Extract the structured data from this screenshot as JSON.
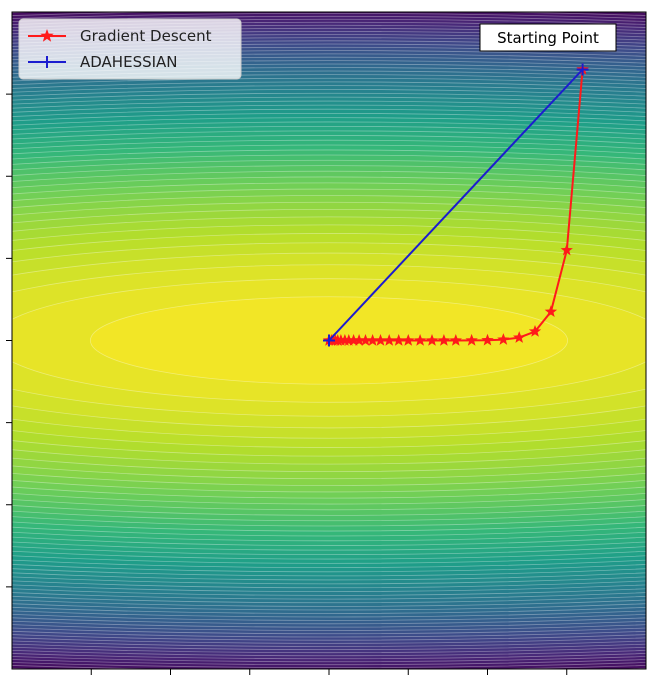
{
  "chart_data": {
    "type": "line",
    "title": "",
    "xlabel": "",
    "ylabel": "",
    "xlim": [
      -4,
      4
    ],
    "ylim": [
      -4,
      4
    ],
    "grid": false,
    "tick_labels_visible": false,
    "background": {
      "kind": "filled_contour",
      "colormap": "viridis",
      "function": "-(x^2/32 + y^2)",
      "levels": 60,
      "center": [
        0,
        0
      ]
    },
    "legend": {
      "placement": "top-left",
      "entries": [
        "Gradient Descent",
        "ADAHESSIAN"
      ]
    },
    "series": [
      {
        "name": "Gradient Descent",
        "color": "#ff1a1a",
        "marker": "star",
        "x": [
          3.2,
          3.0,
          2.8,
          2.6,
          2.4,
          2.2,
          2.0,
          1.8,
          1.6,
          1.45,
          1.3,
          1.15,
          1.0,
          0.88,
          0.76,
          0.65,
          0.55,
          0.46,
          0.38,
          0.31,
          0.25,
          0.2,
          0.15,
          0.11,
          0.08,
          0.05,
          0.03,
          0.0
        ],
        "y": [
          3.3,
          1.1,
          0.35,
          0.11,
          0.035,
          0.011,
          0.003,
          0.001,
          0.0,
          0.0,
          0.0,
          0.0,
          0.0,
          0.0,
          0.0,
          0.0,
          0.0,
          0.0,
          0.0,
          0.0,
          0.0,
          0.0,
          0.0,
          0.0,
          0.0,
          0.0,
          0.0,
          0.0
        ]
      },
      {
        "name": "ADAHESSIAN",
        "color": "#1c1ccf",
        "marker": "plus",
        "x": [
          3.2,
          0.0
        ],
        "y": [
          3.3,
          0.0
        ]
      }
    ],
    "annotations": [
      {
        "text": "Starting Point",
        "x": 3.2,
        "y": 3.3
      }
    ]
  },
  "colors": {
    "gradient_descent": "#ff1a1a",
    "adahessian": "#1c1ccf",
    "axes_frame": "#000000"
  }
}
